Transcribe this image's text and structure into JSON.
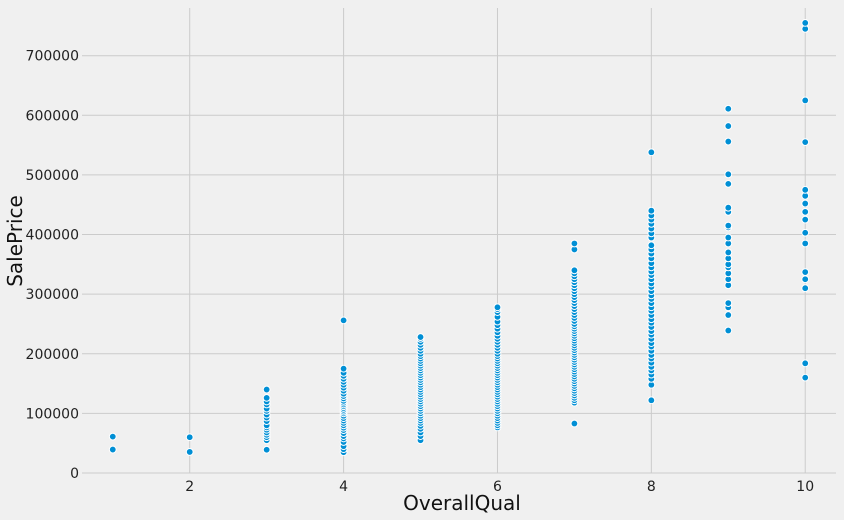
{
  "chart_data": {
    "type": "scatter",
    "title": "",
    "xlabel": "OverallQual",
    "ylabel": "SalePrice",
    "xlim": [
      0.6,
      10.4
    ],
    "ylim": [
      0,
      780000
    ],
    "xticks": [
      2,
      4,
      6,
      8,
      10
    ],
    "yticks": [
      0,
      100000,
      200000,
      300000,
      400000,
      500000,
      600000,
      700000
    ],
    "grid": true,
    "color": "#008fd5",
    "background": "#f0f0f0",
    "points": {
      "1": [
        39300,
        61000
      ],
      "2": [
        35311,
        60000
      ],
      "3": [
        39000,
        55000,
        60000,
        64000,
        68000,
        72500,
        76500,
        80000,
        87000,
        93000,
        98000,
        104000,
        108000,
        115000,
        120000,
        126000,
        140000
      ],
      "4": [
        34900,
        40000,
        45000,
        52000,
        58000,
        62000,
        67000,
        72000,
        76000,
        80000,
        84000,
        88000,
        92000,
        96000,
        100000,
        103000,
        106000,
        109000,
        112000,
        115000,
        118000,
        121000,
        125000,
        129000,
        133000,
        138000,
        143000,
        148000,
        153000,
        158000,
        163000,
        168000,
        175000,
        256000
      ],
      "5": [
        55000,
        62000,
        68000,
        74000,
        79000,
        84000,
        88000,
        92000,
        96000,
        100000,
        104000,
        108000,
        112000,
        116000,
        120000,
        124000,
        128000,
        132000,
        136000,
        140000,
        144000,
        148000,
        152000,
        156000,
        160000,
        164000,
        168000,
        172000,
        176000,
        180000,
        184000,
        188000,
        192000,
        196000,
        200000,
        205000,
        210000,
        215000,
        220000,
        225000,
        228000
      ],
      "6": [
        76500,
        80000,
        84000,
        88000,
        92000,
        96000,
        100000,
        104000,
        108000,
        112000,
        116000,
        120000,
        124000,
        128000,
        132000,
        136000,
        140000,
        144000,
        148000,
        152000,
        156000,
        160000,
        164000,
        168000,
        172000,
        176000,
        180000,
        184000,
        188000,
        192000,
        196000,
        200000,
        205000,
        210000,
        215000,
        220000,
        225000,
        230000,
        236000,
        242000,
        248000,
        254000,
        262000,
        270000,
        275000,
        278000
      ],
      "7": [
        83000,
        118000,
        122000,
        126000,
        130000,
        134000,
        138000,
        142000,
        146000,
        150000,
        154000,
        158000,
        162000,
        166000,
        170000,
        174000,
        178000,
        182000,
        186000,
        190000,
        194000,
        198000,
        202000,
        206000,
        210000,
        214000,
        218000,
        222000,
        226000,
        230000,
        234000,
        238000,
        242000,
        246000,
        250000,
        255000,
        260000,
        265000,
        270000,
        275000,
        280000,
        285000,
        290000,
        295000,
        300000,
        305000,
        310000,
        315000,
        320000,
        325000,
        330000,
        335000,
        340000,
        375000,
        385000
      ],
      "8": [
        122000,
        148000,
        158000,
        165000,
        172000,
        178000,
        185000,
        192000,
        198000,
        205000,
        212000,
        218000,
        225000,
        232000,
        238000,
        245000,
        252000,
        258000,
        265000,
        272000,
        278000,
        285000,
        292000,
        298000,
        305000,
        312000,
        318000,
        325000,
        332000,
        338000,
        345000,
        352000,
        360000,
        368000,
        375000,
        382000,
        395000,
        402000,
        410000,
        418000,
        425000,
        432000,
        440000,
        538000
      ],
      "9": [
        239000,
        265000,
        278000,
        285000,
        315000,
        325000,
        335000,
        345000,
        350000,
        360000,
        370000,
        385000,
        395000,
        412000,
        415000,
        438000,
        445000,
        485000,
        501000,
        556000,
        582000,
        611000
      ],
      "10": [
        160000,
        184000,
        310000,
        325000,
        337000,
        385000,
        403000,
        425000,
        438000,
        452000,
        465000,
        475000,
        555000,
        625000,
        745000,
        755000
      ]
    }
  }
}
